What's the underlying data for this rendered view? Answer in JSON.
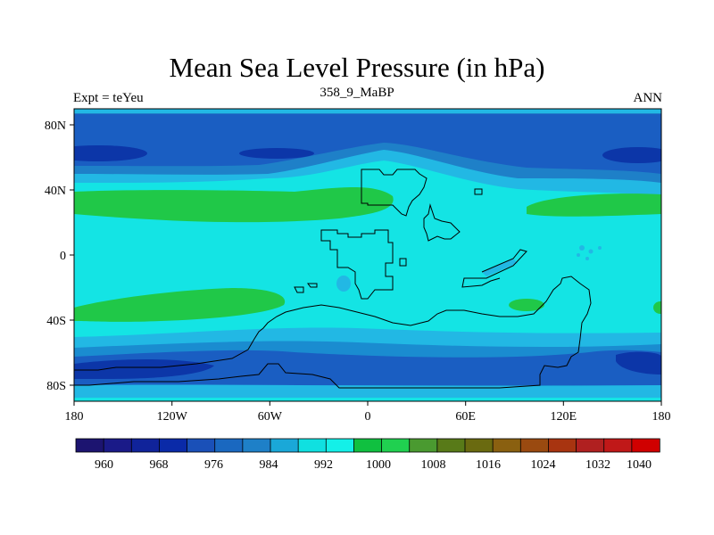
{
  "figure": {
    "title": "Mean Sea Level Pressure (in hPa)",
    "left_label": "Expt = teYeu",
    "center_label": "358_9_MaBP",
    "right_label": "ANN"
  },
  "map": {
    "x_ticks": [
      "180",
      "120W",
      "60W",
      "0",
      "60E",
      "120E",
      "180"
    ],
    "y_ticks": [
      "80N",
      "40N",
      "0",
      "40S",
      "80S"
    ]
  },
  "colorbar": {
    "colors": [
      "#1c1470",
      "#1a1a88",
      "#10239a",
      "#0a2aa8",
      "#1a50b8",
      "#1a68c0",
      "#1e80c8",
      "#1aa8d8",
      "#10e0e0",
      "#14f0e8",
      "#10c040",
      "#20d050",
      "#4a9a30",
      "#587a18",
      "#6a6a10",
      "#8a6010",
      "#9a4a10",
      "#a83410",
      "#b02020",
      "#c01818",
      "#d00000"
    ],
    "labels": [
      "960",
      "968",
      "976",
      "984",
      "992",
      "1000",
      "1008",
      "1016",
      "1024",
      "1032",
      "1040"
    ]
  },
  "palette": {
    "dark_blue": "#0c36a8",
    "blue": "#1a5ec2",
    "mid_blue": "#1a8cd0",
    "light_blue": "#22b8e4",
    "cyan": "#14e4e4",
    "green": "#20c848"
  }
}
